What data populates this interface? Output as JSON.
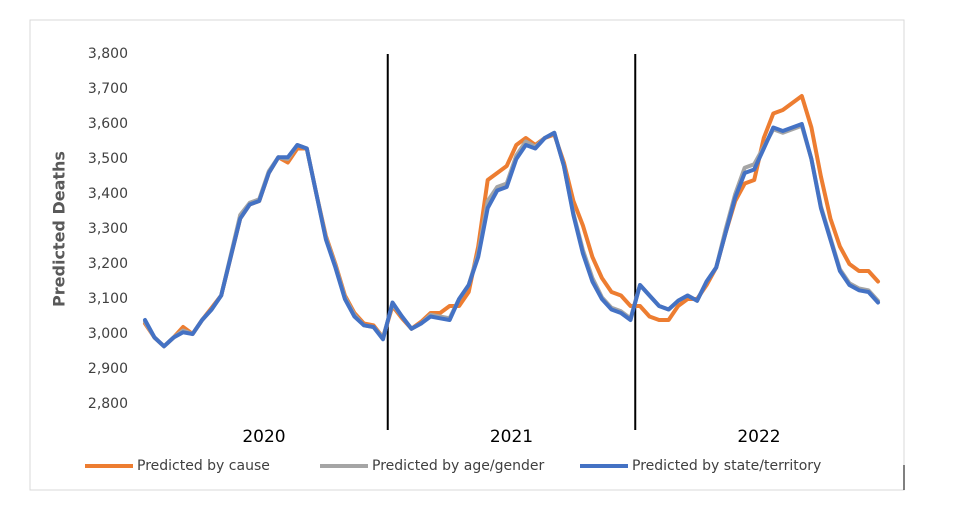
{
  "chart_data": {
    "type": "line",
    "y_label": "Predicted Deaths",
    "groups": [
      "2020",
      "2021",
      "2022"
    ],
    "categories": [
      null,
      null,
      null,
      null,
      null,
      null,
      null,
      null,
      null,
      null,
      null,
      null,
      null,
      null,
      null,
      null,
      null,
      null,
      null,
      null,
      null,
      null,
      null,
      null,
      null,
      null,
      null,
      null,
      null,
      null,
      null,
      null,
      null,
      null,
      null,
      null,
      null,
      null,
      null,
      null,
      null,
      null,
      null,
      null,
      null,
      null,
      null,
      null,
      null,
      null,
      null,
      null,
      null,
      null,
      null,
      null,
      null,
      null,
      null,
      null,
      null,
      null,
      null,
      null,
      null,
      null,
      null,
      null,
      null,
      null,
      null,
      null,
      null,
      null,
      null,
      null,
      null,
      null
    ],
    "series": [
      {
        "name": "Predicted by cause",
        "color": "#ed7d31",
        "values": [
          3030,
          2990,
          2965,
          2990,
          3020,
          3000,
          3040,
          3075,
          3110,
          3220,
          3330,
          3370,
          3380,
          3460,
          3505,
          3490,
          3530,
          3530,
          3400,
          3280,
          3200,
          3110,
          3060,
          3030,
          3025,
          2990,
          3080,
          3045,
          3015,
          3035,
          3060,
          3060,
          3080,
          3080,
          3120,
          3250,
          3440,
          3460,
          3480,
          3540,
          3560,
          3540,
          3560,
          3570,
          3490,
          3380,
          3310,
          3220,
          3160,
          3120,
          3110,
          3080,
          3080,
          3050,
          3040,
          3040,
          3080,
          3100,
          3100,
          3140,
          3190,
          3290,
          3380,
          3430,
          3440,
          3560,
          3630,
          3640,
          3660,
          3680,
          3590,
          3450,
          3330,
          3250,
          3200,
          3180,
          3180,
          3150
        ]
      },
      {
        "name": "Predicted by age/gender",
        "color": "#a5a5a5",
        "values": [
          3035,
          2990,
          2965,
          2990,
          3010,
          3000,
          3040,
          3070,
          3110,
          3225,
          3340,
          3375,
          3385,
          3465,
          3505,
          3500,
          3540,
          3530,
          3400,
          3275,
          3195,
          3105,
          3055,
          3025,
          3020,
          2990,
          3085,
          3050,
          3015,
          3030,
          3055,
          3050,
          3045,
          3100,
          3140,
          3230,
          3380,
          3420,
          3430,
          3510,
          3550,
          3535,
          3560,
          3575,
          3480,
          3345,
          3240,
          3160,
          3105,
          3075,
          3065,
          3045,
          3140,
          3110,
          3080,
          3070,
          3095,
          3110,
          3095,
          3150,
          3190,
          3300,
          3400,
          3475,
          3485,
          3535,
          3585,
          3575,
          3585,
          3595,
          3500,
          3365,
          3275,
          3185,
          3145,
          3130,
          3125,
          3095
        ]
      },
      {
        "name": "Predicted by state/territory",
        "color": "#4472c4",
        "values": [
          3040,
          2990,
          2965,
          2990,
          3005,
          3000,
          3040,
          3070,
          3110,
          3220,
          3330,
          3370,
          3380,
          3460,
          3505,
          3505,
          3540,
          3530,
          3400,
          3270,
          3190,
          3100,
          3050,
          3025,
          3020,
          2985,
          3090,
          3050,
          3015,
          3030,
          3050,
          3045,
          3040,
          3100,
          3140,
          3220,
          3360,
          3410,
          3420,
          3500,
          3540,
          3530,
          3560,
          3575,
          3480,
          3340,
          3230,
          3150,
          3100,
          3070,
          3060,
          3040,
          3140,
          3110,
          3080,
          3070,
          3095,
          3110,
          3095,
          3150,
          3190,
          3290,
          3390,
          3460,
          3470,
          3530,
          3590,
          3580,
          3590,
          3600,
          3500,
          3360,
          3270,
          3180,
          3140,
          3125,
          3120,
          3090
        ]
      }
    ],
    "ylim": [
      2800,
      3800
    ],
    "yticks": [
      {
        "value": 2800,
        "label": "2,800"
      },
      {
        "value": 2900,
        "label": "2,900"
      },
      {
        "value": 3000,
        "label": "3,000"
      },
      {
        "value": 3100,
        "label": "3,100"
      },
      {
        "value": 3200,
        "label": "3,200"
      },
      {
        "value": 3300,
        "label": "3,300"
      },
      {
        "value": 3400,
        "label": "3,400"
      },
      {
        "value": 3500,
        "label": "3,500"
      },
      {
        "value": 3600,
        "label": "3,600"
      },
      {
        "value": 3700,
        "label": "3,700"
      },
      {
        "value": 3800,
        "label": "3,800"
      }
    ],
    "grid": false,
    "legend": "bottom"
  }
}
